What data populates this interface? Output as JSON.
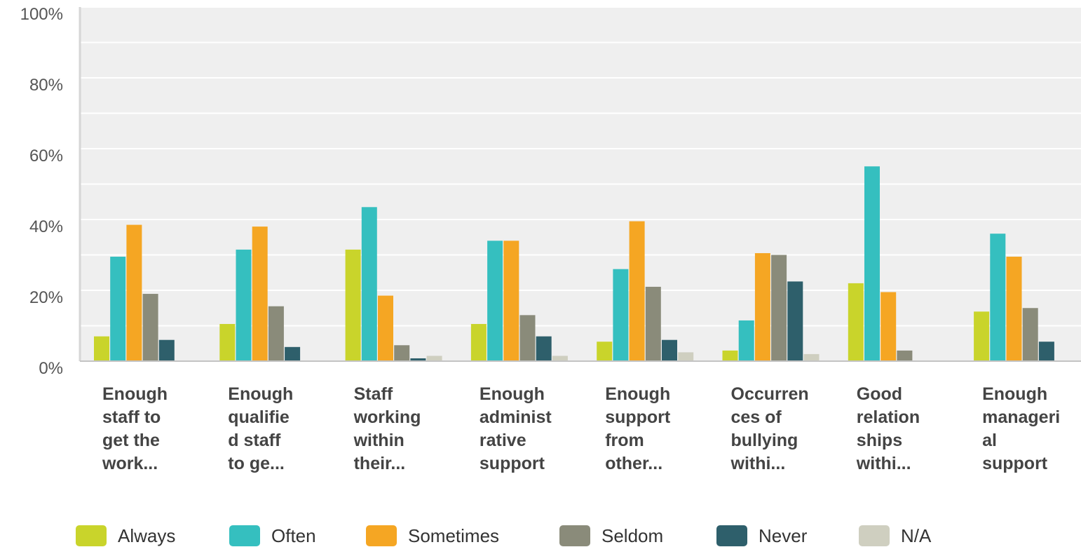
{
  "chart_data": {
    "type": "bar",
    "ylim": [
      0,
      100
    ],
    "yticks": [
      "0%",
      "20%",
      "40%",
      "60%",
      "80%",
      "100%"
    ],
    "grid": true,
    "legend_position": "bottom",
    "categories": [
      [
        "Enough",
        "staff to",
        "get the",
        "work..."
      ],
      [
        "Enough",
        "qualifie",
        "d staff",
        "to ge..."
      ],
      [
        "Staff",
        "working",
        "within",
        "their..."
      ],
      [
        "Enough",
        "administ",
        "rative",
        "support"
      ],
      [
        "Enough",
        "support",
        "from",
        "other..."
      ],
      [
        "Occurren",
        "ces of",
        "bullying",
        "withi..."
      ],
      [
        "Good",
        "relation",
        "ships",
        "withi..."
      ],
      [
        "Enough",
        "manageri",
        "al",
        "support"
      ]
    ],
    "series": [
      {
        "name": "Always",
        "color": "#c9d42b",
        "values": [
          7,
          10.5,
          31.5,
          10.5,
          5.5,
          3,
          22,
          14
        ]
      },
      {
        "name": "Often",
        "color": "#35bfbf",
        "values": [
          29.5,
          31.5,
          43.5,
          34,
          26,
          11.5,
          55,
          36
        ]
      },
      {
        "name": "Sometimes",
        "color": "#f5a623",
        "values": [
          38.5,
          38,
          18.5,
          34,
          39.5,
          30.5,
          19.5,
          29.5
        ]
      },
      {
        "name": "Seldom",
        "color": "#8a8b7a",
        "values": [
          19,
          15.5,
          4.5,
          13,
          21,
          30,
          3,
          15
        ]
      },
      {
        "name": "Never",
        "color": "#2e5f6b",
        "values": [
          6,
          4,
          0.8,
          7,
          6,
          22.5,
          0,
          5.5
        ]
      },
      {
        "name": "N/A",
        "color": "#cfcfc0",
        "values": [
          0,
          0,
          1.5,
          1.5,
          2.5,
          2,
          0,
          0
        ]
      }
    ]
  }
}
